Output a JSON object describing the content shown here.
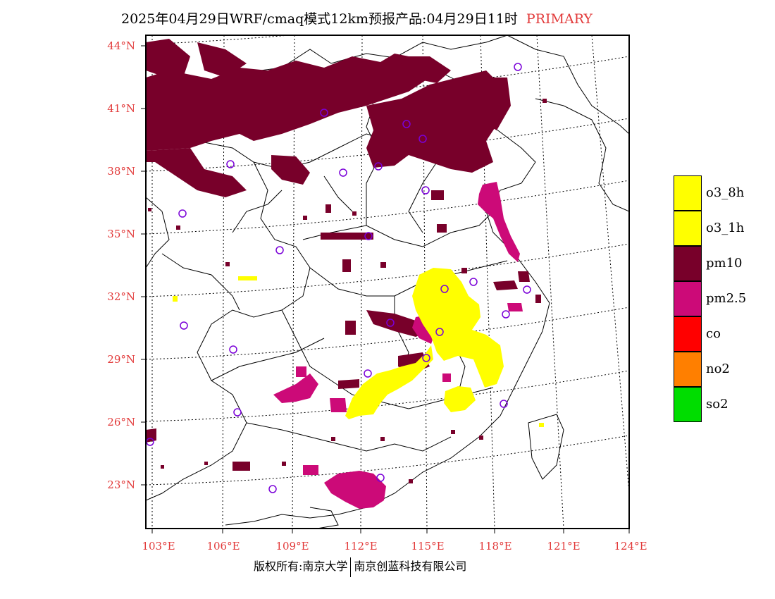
{
  "title": {
    "main": "2025年04月29日WRF/cmaq模式12km预报产品:04月29日11时",
    "product": "PRIMARY"
  },
  "map": {
    "lat_labels": [
      "44°N",
      "41°N",
      "38°N",
      "35°N",
      "32°N",
      "29°N",
      "26°N",
      "23°N"
    ],
    "lon_labels": [
      "103°E",
      "106°E",
      "109°E",
      "112°E",
      "115°E",
      "118°E",
      "121°E",
      "124°E"
    ]
  },
  "legend": {
    "items": [
      {
        "label": "o3_8h",
        "color": "#ffff00"
      },
      {
        "label": "o3_1h",
        "color": "#ffff00"
      },
      {
        "label": "pm10",
        "color": "#78002a"
      },
      {
        "label": "pm2.5",
        "color": "#cc0a78"
      },
      {
        "label": "co",
        "color": "#ff0000"
      },
      {
        "label": "no2",
        "color": "#ff7f00"
      },
      {
        "label": "so2",
        "color": "#00dd00"
      }
    ]
  },
  "footer": {
    "left": "版权所有:南京大学",
    "right": "南京创蓝科技有限公司"
  },
  "colors": {
    "label_red": "#e23a3a",
    "pm10": "#78002a",
    "pm25": "#cc0a78",
    "o3": "#ffff00",
    "station_ring": "#7a00d8"
  }
}
